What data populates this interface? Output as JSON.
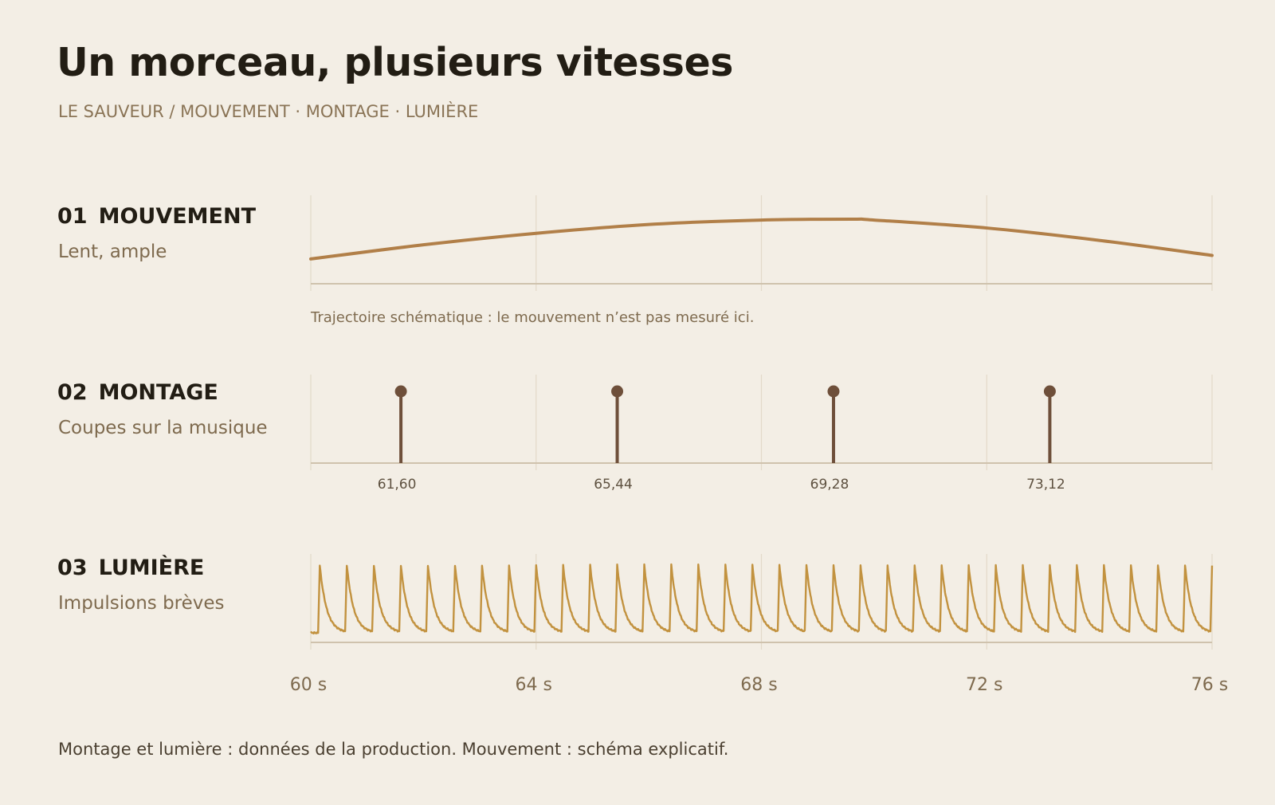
{
  "header": {
    "title": "Un morceau, plusieurs vitesses",
    "subtitle": "LE SAUVEUR  /  MOUVEMENT · MONTAGE · LUMIÈRE"
  },
  "rows": [
    {
      "num": "01",
      "title": "MOUVEMENT",
      "subtitle": "Lent, ample",
      "note": "Trajectoire schématique : le mouvement n’est pas mesuré ici."
    },
    {
      "num": "02",
      "title": "MONTAGE",
      "subtitle": "Coupes sur la musique"
    },
    {
      "num": "03",
      "title": "LUMIÈRE",
      "subtitle": "Impulsions brèves"
    }
  ],
  "footer": "Montage et lumière : données de la production. Mouvement : schéma explicatif.",
  "colors": {
    "background": "#f3eee5",
    "movement": "#b17f48",
    "montage": "#6e4f3a",
    "lumiere": "#c2923f",
    "grid": "#e2d9c9",
    "baseline": "#cfc2ad"
  },
  "chart_data": {
    "type": "line",
    "x_unit": "s",
    "xlim": [
      60,
      76
    ],
    "x_ticks": [
      60,
      64,
      68,
      72,
      76
    ],
    "x_tick_labels": [
      "60 s",
      "64 s",
      "68 s",
      "72 s",
      "76 s"
    ],
    "grid": true,
    "panels": [
      {
        "name": "MOUVEMENT",
        "type": "line",
        "schematic": true,
        "x": [
          60,
          62,
          64,
          66,
          68,
          69.6,
          70,
          72,
          74,
          76
        ],
        "y": [
          0.28,
          0.44,
          0.57,
          0.67,
          0.72,
          0.73,
          0.72,
          0.63,
          0.49,
          0.32
        ],
        "ylim": [
          0,
          1
        ]
      },
      {
        "name": "MONTAGE",
        "type": "stem",
        "cuts": [
          61.6,
          65.44,
          69.28,
          73.12
        ],
        "cut_labels": [
          "61,60",
          "65,44",
          "69,28",
          "73,12"
        ]
      },
      {
        "name": "LUMIÈRE",
        "type": "line",
        "pulse_times": [
          60.16,
          60.64,
          61.12,
          61.6,
          62.08,
          62.56,
          63.04,
          63.52,
          64.0,
          64.48,
          64.96,
          65.44,
          65.92,
          66.4,
          66.88,
          67.36,
          67.84,
          68.32,
          68.8,
          69.28,
          69.76,
          70.24,
          70.72,
          71.2,
          71.68,
          72.16,
          72.64,
          73.12,
          73.6,
          74.08,
          74.56,
          75.04,
          75.52,
          76.0
        ],
        "peak": 1.0,
        "floor": 0.05,
        "decay_s": 0.12
      }
    ]
  }
}
